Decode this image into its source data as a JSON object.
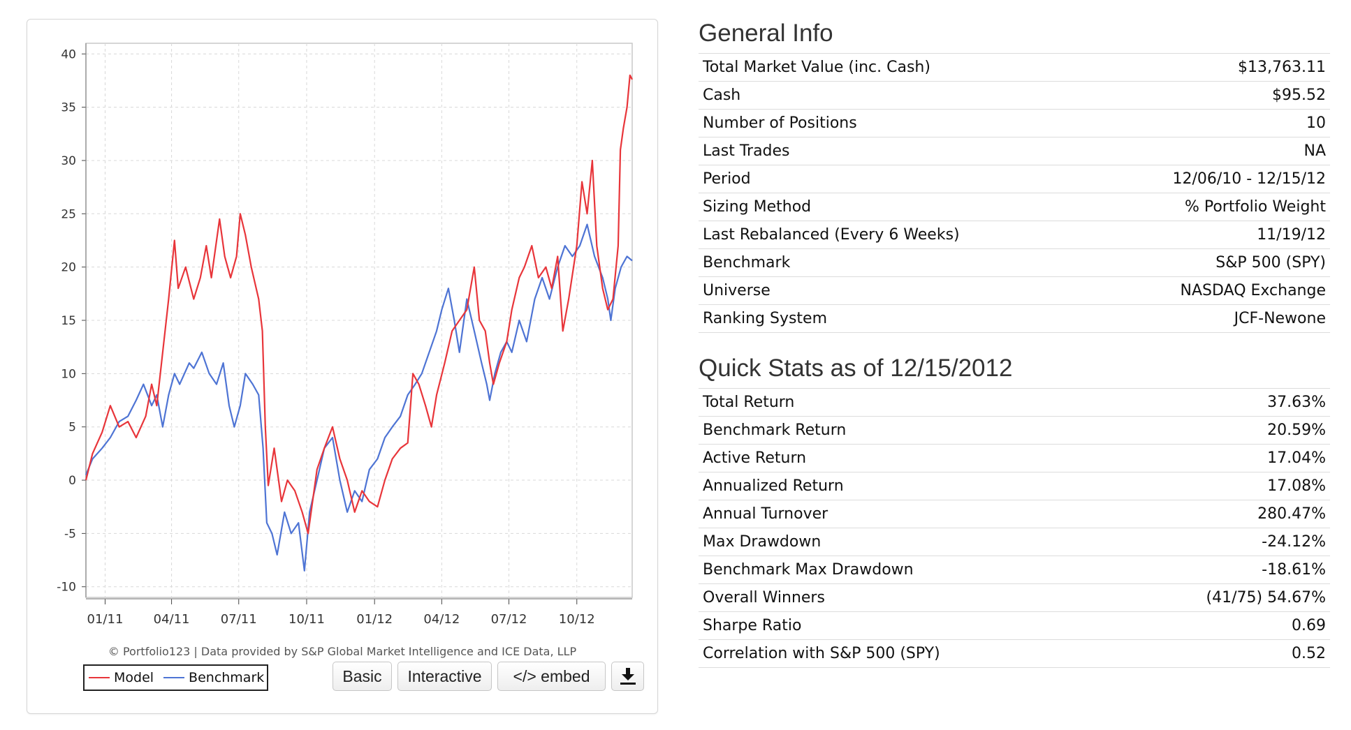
{
  "chart_data": {
    "type": "line",
    "x_tick_labels": [
      "01/11",
      "04/11",
      "07/11",
      "10/11",
      "01/12",
      "04/12",
      "07/12",
      "10/12"
    ],
    "y_ticks": [
      -10,
      -5,
      0,
      5,
      10,
      15,
      20,
      25,
      30,
      35,
      40
    ],
    "ylim": [
      -11,
      41
    ],
    "xlim": [
      "2010-12-06",
      "2012-12-15"
    ],
    "x_tick_dates": [
      "2011-01-01",
      "2011-04-01",
      "2011-07-01",
      "2011-10-01",
      "2012-01-01",
      "2012-04-01",
      "2012-07-01",
      "2012-10-01"
    ],
    "grid": true,
    "legend_placement": "bottom-left",
    "series": [
      {
        "name": "Model",
        "color": "#e8353a",
        "points": [
          [
            "2010-12-06",
            0
          ],
          [
            "2010-12-15",
            2.5
          ],
          [
            "2010-12-28",
            4.5
          ],
          [
            "2011-01-08",
            7
          ],
          [
            "2011-01-20",
            5
          ],
          [
            "2011-02-01",
            5.5
          ],
          [
            "2011-02-12",
            4
          ],
          [
            "2011-02-25",
            6
          ],
          [
            "2011-03-05",
            9
          ],
          [
            "2011-03-12",
            7
          ],
          [
            "2011-03-20",
            12
          ],
          [
            "2011-03-28",
            17
          ],
          [
            "2011-04-05",
            22.5
          ],
          [
            "2011-04-10",
            18
          ],
          [
            "2011-04-20",
            20
          ],
          [
            "2011-05-01",
            17
          ],
          [
            "2011-05-10",
            19
          ],
          [
            "2011-05-18",
            22
          ],
          [
            "2011-05-25",
            19
          ],
          [
            "2011-06-05",
            24.5
          ],
          [
            "2011-06-12",
            21
          ],
          [
            "2011-06-20",
            19
          ],
          [
            "2011-06-28",
            21
          ],
          [
            "2011-07-03",
            25
          ],
          [
            "2011-07-10",
            23
          ],
          [
            "2011-07-18",
            20
          ],
          [
            "2011-07-28",
            17
          ],
          [
            "2011-08-02",
            14
          ],
          [
            "2011-08-06",
            5
          ],
          [
            "2011-08-10",
            -0.5
          ],
          [
            "2011-08-18",
            3
          ],
          [
            "2011-08-28",
            -2
          ],
          [
            "2011-09-05",
            0
          ],
          [
            "2011-09-15",
            -1
          ],
          [
            "2011-09-25",
            -3
          ],
          [
            "2011-10-03",
            -5
          ],
          [
            "2011-10-15",
            1
          ],
          [
            "2011-10-25",
            3
          ],
          [
            "2011-11-05",
            5
          ],
          [
            "2011-11-15",
            2
          ],
          [
            "2011-11-25",
            0
          ],
          [
            "2011-12-05",
            -3
          ],
          [
            "2011-12-15",
            -1
          ],
          [
            "2011-12-25",
            -2
          ],
          [
            "2012-01-05",
            -2.5
          ],
          [
            "2012-01-15",
            0
          ],
          [
            "2012-01-25",
            2
          ],
          [
            "2012-02-05",
            3
          ],
          [
            "2012-02-15",
            3.5
          ],
          [
            "2012-02-22",
            10
          ],
          [
            "2012-03-01",
            9
          ],
          [
            "2012-03-10",
            7
          ],
          [
            "2012-03-18",
            5
          ],
          [
            "2012-03-25",
            8
          ],
          [
            "2012-04-05",
            11
          ],
          [
            "2012-04-15",
            14
          ],
          [
            "2012-04-25",
            15
          ],
          [
            "2012-05-05",
            16
          ],
          [
            "2012-05-15",
            20
          ],
          [
            "2012-05-22",
            15
          ],
          [
            "2012-05-30",
            14
          ],
          [
            "2012-06-05",
            11
          ],
          [
            "2012-06-10",
            9
          ],
          [
            "2012-06-18",
            11
          ],
          [
            "2012-06-28",
            13
          ],
          [
            "2012-07-05",
            16
          ],
          [
            "2012-07-15",
            19
          ],
          [
            "2012-07-22",
            20
          ],
          [
            "2012-08-01",
            22
          ],
          [
            "2012-08-10",
            19
          ],
          [
            "2012-08-20",
            20
          ],
          [
            "2012-08-28",
            18
          ],
          [
            "2012-09-05",
            21
          ],
          [
            "2012-09-12",
            14
          ],
          [
            "2012-09-20",
            17
          ],
          [
            "2012-10-01",
            22
          ],
          [
            "2012-10-08",
            28
          ],
          [
            "2012-10-15",
            25
          ],
          [
            "2012-10-22",
            30
          ],
          [
            "2012-10-28",
            22
          ],
          [
            "2012-11-05",
            18
          ],
          [
            "2012-11-12",
            16
          ],
          [
            "2012-11-19",
            17
          ],
          [
            "2012-11-26",
            22
          ],
          [
            "2012-11-29",
            31
          ],
          [
            "2012-12-03",
            33
          ],
          [
            "2012-12-08",
            35
          ],
          [
            "2012-12-12",
            38
          ],
          [
            "2012-12-15",
            37.6
          ]
        ]
      },
      {
        "name": "Benchmark",
        "color": "#4e74d4",
        "points": [
          [
            "2010-12-06",
            0.5
          ],
          [
            "2010-12-15",
            2
          ],
          [
            "2010-12-28",
            3
          ],
          [
            "2011-01-08",
            4
          ],
          [
            "2011-01-20",
            5.5
          ],
          [
            "2011-02-01",
            6
          ],
          [
            "2011-02-12",
            7.5
          ],
          [
            "2011-02-22",
            9
          ],
          [
            "2011-03-05",
            7
          ],
          [
            "2011-03-12",
            8
          ],
          [
            "2011-03-20",
            5
          ],
          [
            "2011-03-28",
            8
          ],
          [
            "2011-04-05",
            10
          ],
          [
            "2011-04-12",
            9
          ],
          [
            "2011-04-25",
            11
          ],
          [
            "2011-05-01",
            10.5
          ],
          [
            "2011-05-12",
            12
          ],
          [
            "2011-05-22",
            10
          ],
          [
            "2011-06-01",
            9
          ],
          [
            "2011-06-10",
            11
          ],
          [
            "2011-06-18",
            7
          ],
          [
            "2011-06-25",
            5
          ],
          [
            "2011-07-03",
            7
          ],
          [
            "2011-07-10",
            10
          ],
          [
            "2011-07-20",
            9
          ],
          [
            "2011-07-28",
            8
          ],
          [
            "2011-08-03",
            3
          ],
          [
            "2011-08-08",
            -4
          ],
          [
            "2011-08-15",
            -5
          ],
          [
            "2011-08-22",
            -7
          ],
          [
            "2011-09-01",
            -3
          ],
          [
            "2011-09-10",
            -5
          ],
          [
            "2011-09-20",
            -4
          ],
          [
            "2011-09-28",
            -8.5
          ],
          [
            "2011-10-05",
            -3
          ],
          [
            "2011-10-15",
            0
          ],
          [
            "2011-10-25",
            3
          ],
          [
            "2011-11-05",
            4
          ],
          [
            "2011-11-15",
            0
          ],
          [
            "2011-11-25",
            -3
          ],
          [
            "2011-12-05",
            -1
          ],
          [
            "2011-12-15",
            -2
          ],
          [
            "2011-12-25",
            1
          ],
          [
            "2012-01-05",
            2
          ],
          [
            "2012-01-15",
            4
          ],
          [
            "2012-01-25",
            5
          ],
          [
            "2012-02-05",
            6
          ],
          [
            "2012-02-15",
            8
          ],
          [
            "2012-02-25",
            9
          ],
          [
            "2012-03-05",
            10
          ],
          [
            "2012-03-15",
            12
          ],
          [
            "2012-03-25",
            14
          ],
          [
            "2012-04-01",
            16
          ],
          [
            "2012-04-10",
            18
          ],
          [
            "2012-04-18",
            15
          ],
          [
            "2012-04-25",
            12
          ],
          [
            "2012-05-05",
            17
          ],
          [
            "2012-05-15",
            14
          ],
          [
            "2012-05-25",
            11
          ],
          [
            "2012-06-01",
            9
          ],
          [
            "2012-06-05",
            7.5
          ],
          [
            "2012-06-12",
            10
          ],
          [
            "2012-06-20",
            12
          ],
          [
            "2012-06-28",
            13
          ],
          [
            "2012-07-05",
            12
          ],
          [
            "2012-07-15",
            15
          ],
          [
            "2012-07-25",
            13
          ],
          [
            "2012-08-05",
            17
          ],
          [
            "2012-08-15",
            19
          ],
          [
            "2012-08-25",
            17
          ],
          [
            "2012-09-05",
            20
          ],
          [
            "2012-09-15",
            22
          ],
          [
            "2012-09-25",
            21
          ],
          [
            "2012-10-05",
            22
          ],
          [
            "2012-10-15",
            24
          ],
          [
            "2012-10-25",
            21
          ],
          [
            "2012-11-05",
            19
          ],
          [
            "2012-11-12",
            17
          ],
          [
            "2012-11-16",
            15
          ],
          [
            "2012-11-22",
            18
          ],
          [
            "2012-11-30",
            20
          ],
          [
            "2012-12-08",
            21
          ],
          [
            "2012-12-15",
            20.6
          ]
        ]
      }
    ]
  },
  "chart_footer": {
    "copyright": "© Portfolio123 | Data provided by S&P Global Market Intelligence and ICE Data, LLP",
    "legend": [
      "Model",
      "Benchmark"
    ],
    "buttons": {
      "basic": "Basic",
      "interactive": "Interactive",
      "embed": "</> embed"
    },
    "download_icon": "download-icon"
  },
  "general_info": {
    "title": "General Info",
    "rows": [
      {
        "label": "Total Market Value (inc. Cash)",
        "value": "$13,763.11"
      },
      {
        "label": "Cash",
        "value": "$95.52"
      },
      {
        "label": "Number of Positions",
        "value": "10"
      },
      {
        "label": "Last Trades",
        "value": "NA"
      },
      {
        "label": "Period",
        "value": "12/06/10 - 12/15/12"
      },
      {
        "label": "Sizing Method",
        "value": "% Portfolio Weight"
      },
      {
        "label": "Last Rebalanced (Every 6 Weeks)",
        "value": "11/19/12"
      },
      {
        "label": "Benchmark",
        "value": "S&P 500 (SPY)"
      },
      {
        "label": "Universe",
        "value": "NASDAQ Exchange"
      },
      {
        "label": "Ranking System",
        "value": "JCF-Newone"
      }
    ]
  },
  "quick_stats": {
    "title": "Quick Stats as of 12/15/2012",
    "rows": [
      {
        "label": "Total Return",
        "value": "37.63%"
      },
      {
        "label": "Benchmark Return",
        "value": "20.59%"
      },
      {
        "label": "Active Return",
        "value": "17.04%"
      },
      {
        "label": "Annualized Return",
        "value": "17.08%"
      },
      {
        "label": "Annual Turnover",
        "value": "280.47%"
      },
      {
        "label": "Max Drawdown",
        "value": "-24.12%"
      },
      {
        "label": "Benchmark Max Drawdown",
        "value": "-18.61%"
      },
      {
        "label": "Overall Winners",
        "value": "(41/75) 54.67%"
      },
      {
        "label": "Sharpe Ratio",
        "value": "0.69"
      },
      {
        "label": "Correlation with S&P 500 (SPY)",
        "value": "0.52"
      }
    ]
  },
  "colors": {
    "link": "#1f3f8f",
    "negative": "#b41f1f",
    "model": "#e8353a",
    "benchmark": "#4e74d4"
  }
}
